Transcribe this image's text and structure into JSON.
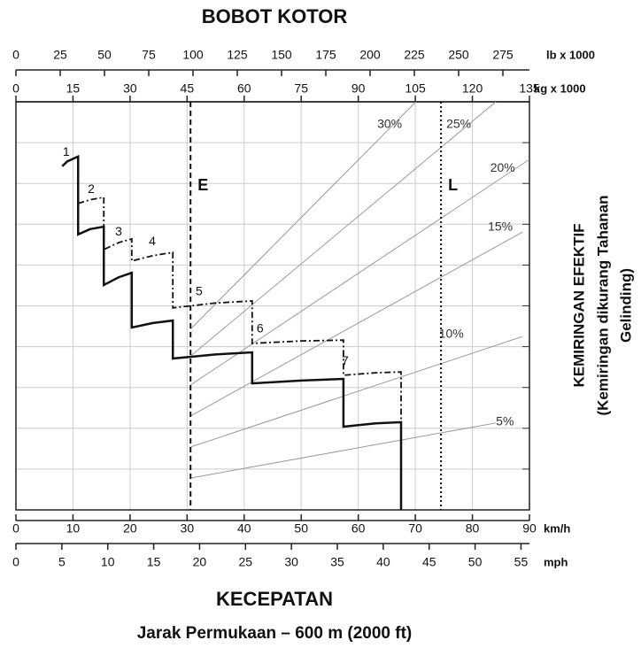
{
  "chart_data": {
    "type": "line",
    "title": "BOBOT KOTOR",
    "xlabel": "KECEPATAN",
    "subtitle": "Jarak Permukaan – 600 m (2000 ft)",
    "ylabel": [
      "KEMIRINGAN EFEKTIF",
      "(Kemiringan dikurang Tahanan",
      "Gelinding)"
    ],
    "ylim": [
      0,
      100
    ],
    "yticks": [
      10,
      20,
      30,
      40,
      50,
      60,
      70,
      80,
      90
    ],
    "grid": true,
    "axes": {
      "kmh": {
        "unit": "km/h",
        "lim": [
          0,
          90
        ],
        "ticks": [
          0,
          10,
          20,
          30,
          40,
          50,
          60,
          70,
          80,
          90
        ]
      },
      "mph": {
        "unit": "mph",
        "lim": [
          0,
          55.92
        ],
        "ticks": [
          0,
          5,
          10,
          15,
          20,
          25,
          30,
          35,
          40,
          45,
          50,
          55
        ]
      },
      "lb": {
        "unit": "lb x 1000",
        "lim": [
          0,
          290
        ],
        "ticks": [
          0,
          25,
          50,
          75,
          100,
          125,
          150,
          175,
          200,
          225,
          250,
          275
        ]
      },
      "kg": {
        "unit": "kg x 1000",
        "lim": [
          0,
          135
        ],
        "ticks": [
          0,
          15,
          30,
          45,
          60,
          75,
          90,
          105,
          120,
          135
        ]
      }
    },
    "series": [
      {
        "color": "#111111",
        "dash": "solid",
        "x": [
          8.1,
          9,
          10.9,
          10.9,
          13,
          15.4,
          15.4,
          18,
          20.3,
          20.3,
          24,
          27.5,
          27.5,
          35,
          41.4,
          41.4,
          50,
          57.4,
          57.4,
          63,
          67.5,
          67.5
        ],
        "values": [
          84.2,
          85.4,
          86.6,
          67.5,
          68.8,
          69.4,
          55.1,
          57,
          58.1,
          44.7,
          45.8,
          46.4,
          37.1,
          38.1,
          38.6,
          31,
          31.7,
          32.1,
          20.4,
          21.2,
          21.5,
          0
        ]
      },
      {
        "color": "#111111",
        "dash": "dashdot",
        "x": [
          10.9,
          13,
          15.4,
          15.4,
          18,
          20.3,
          20.3,
          24,
          27.5,
          27.5,
          35,
          41.4,
          41.4,
          50,
          57.4,
          57.4,
          63,
          67.5,
          67.5
        ],
        "values": [
          75.1,
          76,
          76.6,
          63.8,
          65.5,
          66.4,
          61,
          62.3,
          63.1,
          49.5,
          50.7,
          51.2,
          40.8,
          41.4,
          41.6,
          33,
          33.6,
          33.8,
          21.5
        ]
      }
    ],
    "gear_labels": [
      {
        "label": "1",
        "x": 8.8,
        "y": 87.6
      },
      {
        "label": "2",
        "x": 13.2,
        "y": 78.5
      },
      {
        "label": "3",
        "x": 18,
        "y": 68.1
      },
      {
        "label": "4",
        "x": 23.9,
        "y": 65.7
      },
      {
        "label": "5",
        "x": 32.1,
        "y": 53.4
      },
      {
        "label": "6",
        "x": 42.8,
        "y": 44.3
      },
      {
        "label": "7",
        "x": 57.7,
        "y": 36.4
      }
    ],
    "grade_lines": [
      {
        "label": "5%",
        "x": [
          30.6,
          84.1
        ],
        "y": [
          7.8,
          21.3
        ],
        "label_x": 85.7,
        "label_y": 21.5
      },
      {
        "label": "10%",
        "x": [
          30.6,
          88.8
        ],
        "y": [
          15.4,
          42.5
        ],
        "label_x": 76.3,
        "label_y": 43
      },
      {
        "label": "15%",
        "x": [
          30.6,
          88.8
        ],
        "y": [
          23,
          68.1
        ],
        "label_x": 84.9,
        "label_y": 69.2
      },
      {
        "label": "20%",
        "x": [
          30.6,
          90
        ],
        "y": [
          30.6,
          85.9
        ],
        "label_x": 85.3,
        "label_y": 83.7
      },
      {
        "label": "25%",
        "x": [
          30.6,
          84.1
        ],
        "y": [
          37.7,
          100
        ],
        "label_x": 77.6,
        "label_y": 94.4
      },
      {
        "label": "30%",
        "x": [
          30.6,
          70.1
        ],
        "y": [
          44.3,
          100
        ],
        "label_x": 65.5,
        "label_y": 94.4
      }
    ],
    "reference_lines": [
      {
        "label": "E",
        "x": 30.6,
        "style": "dashed"
      },
      {
        "label": "L",
        "x": 74.5,
        "style": "dotted"
      }
    ]
  }
}
